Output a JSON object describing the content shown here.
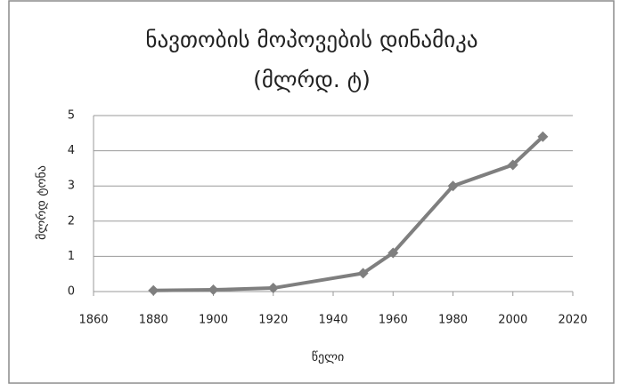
{
  "chart_data": {
    "type": "line",
    "title": [
      "ნავთობის მოპოვების დინამიკა",
      "(მლრდ. ტ)"
    ],
    "x_label": "წელი",
    "y_label": "მლრდ ტონა",
    "x": [
      1880,
      1900,
      1920,
      1950,
      1960,
      1980,
      2000,
      2010
    ],
    "series": [
      {
        "name": "მლრდ ტონა",
        "color": "#7f7f7f",
        "values": [
          0.03,
          0.05,
          0.1,
          0.52,
          1.1,
          3.0,
          3.6,
          4.4
        ]
      }
    ],
    "xlim": [
      1860,
      2020
    ],
    "xticks": [
      1860,
      1880,
      1900,
      1920,
      1940,
      1960,
      1980,
      2000,
      2020
    ],
    "ylim": [
      0,
      5
    ],
    "yticks": [
      0,
      1,
      2,
      3,
      4,
      5
    ],
    "grid": true
  }
}
